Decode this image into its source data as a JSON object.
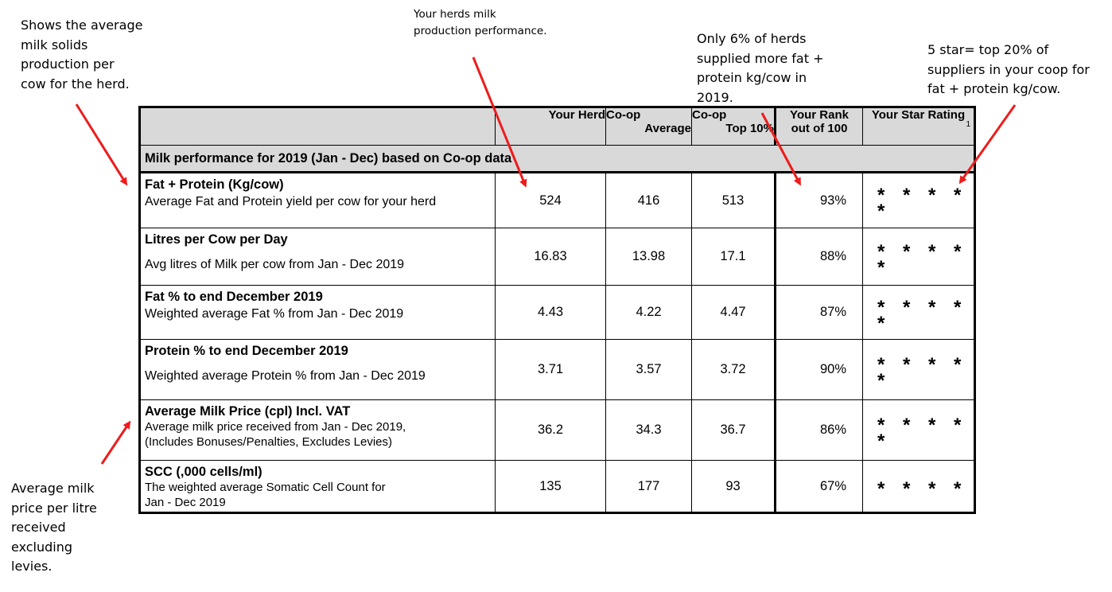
{
  "annotations": {
    "avg_solids": "Shows the average\nmilk solids\nproduction per\ncow for the herd.",
    "herd_perf": "Your herds milk\nproduction performance.",
    "only_6pct": "Only 6% of herds\nsupplied more fat +\nprotein kg/cow in\n2019.",
    "five_star": "5 star= top 20% of\nsuppliers in your coop for\nfat + protein kg/cow.",
    "milk_price": "Average milk\nprice per litre\nreceived\nexcluding\nlevies."
  },
  "table": {
    "headers": {
      "your_herd": "Your Herd",
      "coop_avg_line1": "Co-op",
      "coop_avg_line2": "Average",
      "coop_top_line1": "Co-op",
      "coop_top_line2": "Top 10%",
      "rank_line1": "Your Rank",
      "rank_line2": "out of 100",
      "stars": "Your Star Rating",
      "stars_sup": "1"
    },
    "section_title": "Milk performance for 2019 (Jan - Dec) based on Co-op data",
    "rows": [
      {
        "title": "Fat + Protein (Kg/cow)",
        "sub": "Average Fat and Protein yield per cow for your herd",
        "sub2": "",
        "herd": "524",
        "coop_avg": "416",
        "coop_top": "513",
        "rank": "93%",
        "stars": "* * * * *"
      },
      {
        "title": "Litres per Cow per Day",
        "sub": "Avg litres of Milk per cow from Jan - Dec 2019",
        "sub2": "",
        "herd": "16.83",
        "coop_avg": "13.98",
        "coop_top": "17.1",
        "rank": "88%",
        "stars": "* * * * *"
      },
      {
        "title": "Fat % to end December 2019",
        "sub": "Weighted average Fat % from Jan - Dec 2019",
        "sub2": "",
        "herd": "4.43",
        "coop_avg": "4.22",
        "coop_top": "4.47",
        "rank": "87%",
        "stars": "* * * * *"
      },
      {
        "title": "Protein % to end December 2019",
        "sub": "Weighted average Protein % from Jan - Dec 2019",
        "sub2": "",
        "herd": "3.71",
        "coop_avg": "3.57",
        "coop_top": "3.72",
        "rank": "90%",
        "stars": "* * * * *"
      },
      {
        "title": "Average Milk Price (cpl) Incl. VAT",
        "sub": "Average milk price received from Jan - Dec 2019,",
        "sub2": "(Includes Bonuses/Penalties, Excludes Levies)",
        "herd": "36.2",
        "coop_avg": "34.3",
        "coop_top": "36.7",
        "rank": "86%",
        "stars": "* * * * *"
      },
      {
        "title": "SCC (,000 cells/ml)",
        "sub": "The weighted average Somatic Cell Count for",
        "sub2": "Jan - Dec 2019",
        "herd": "135",
        "coop_avg": "177",
        "coop_top": "93",
        "rank": "67%",
        "stars": "* * * *"
      }
    ]
  },
  "colors": {
    "arrow": "#ee1c1c",
    "header_bg": "#d9d9d9"
  }
}
